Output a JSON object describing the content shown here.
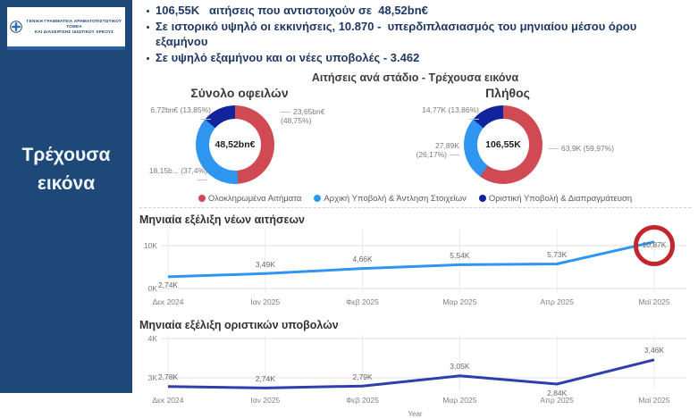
{
  "sidebar": {
    "logo": {
      "line1": "ΓΕΝΙΚΗ ΓΡΑΜΜΑΤΕΙΑ ΧΡΗΜΑΤΟΠΙΣΤΩΤΙΚΟΥ ΤΟΜΕΑ",
      "line2": "ΚΑΙ ΔΙΑΧΕΙΡΙΣΗΣ ΙΔΙΩΤΙΚΟΥ ΧΡΕΟΥΣ"
    },
    "page_label": "Τρέχουσα εικόνα"
  },
  "highlights": {
    "items": [
      "106,55K   αιτήσεις που αντιστοιχούν σε  48,52bn€",
      "Σε ιστορικό υψηλό οι εκκινήσεις, 10.870 -  υπερδιπλασιασμός του μηνιαίου μέσου όρου εξαμήνου",
      "Σε υψηλό εξαμήνου και οι νέες υποβολές - 3.462"
    ]
  },
  "section_title": "Αιτήσεις ανά στάδιο - Τρέχουσα εικόνα",
  "legend": {
    "items": [
      {
        "label": "Ολοκληρωμένα Αιτήματα",
        "color": "#d04a54"
      },
      {
        "label": "Αρχική Υποβολή & Άντληση Στοιχείων",
        "color": "#2e96f0"
      },
      {
        "label": "Οριστική Υποβολή & Διαπραγμάτευση",
        "color": "#12239e"
      }
    ]
  },
  "chart_data": [
    {
      "type": "pie",
      "subtype": "donut",
      "title": "Σύνολο οφειλών",
      "center_label": "48,52bn€",
      "slices": [
        {
          "name": "Ολοκληρωμένα Αιτήματα",
          "value_label": "23,65bn€ (48,75%)",
          "pct": 48.75,
          "color": "#d04a54"
        },
        {
          "name": "Αρχική Υποβολή & Άντληση Στοιχείων",
          "value_label": "18,15b... (37,4%)",
          "pct": 37.4,
          "color": "#2e96f0"
        },
        {
          "name": "Οριστική Υποβολή & Διαπραγμάτευση",
          "value_label": "6,72bn€ (13,85%)",
          "pct": 13.85,
          "color": "#12239e"
        }
      ]
    },
    {
      "type": "pie",
      "subtype": "donut",
      "title": "Πλήθος",
      "center_label": "106,55K",
      "slices": [
        {
          "name": "Ολοκληρωμένα Αιτήματα",
          "value_label": "63,9K (59,97%)",
          "pct": 59.97,
          "color": "#d04a54"
        },
        {
          "name": "Αρχική Υποβολή & Άντληση Στοιχείων",
          "value_label": "27,89K (26,17%)",
          "pct": 26.17,
          "color": "#2e96f0"
        },
        {
          "name": "Οριστική Υποβολή & Διαπραγμάτευση",
          "value_label": "14,77K (13,86%)",
          "pct": 13.86,
          "color": "#12239e"
        }
      ]
    },
    {
      "type": "line",
      "title": "Μηνιαία εξέλιξη νέων αιτήσεων",
      "x": [
        "Δεκ 2024",
        "Ιαν 2025",
        "Φεβ 2025",
        "Μαρ 2025",
        "Απρ 2025",
        "Μαϊ 2025"
      ],
      "values": [
        2740,
        3490,
        4660,
        5540,
        5730,
        10870
      ],
      "point_labels": [
        "2,74K",
        "3,49K",
        "4,66K",
        "5,54K",
        "5,73K",
        "10,87K"
      ],
      "label_positions": [
        "below",
        "above",
        "above",
        "above",
        "above",
        "center"
      ],
      "yticks": [
        {
          "value": 0,
          "label": "0K"
        },
        {
          "value": 10000,
          "label": "10K"
        }
      ],
      "ylim": [
        -830,
        13750
      ],
      "color": "#2e96f0",
      "annotation": {
        "type": "circle",
        "point_index": 5,
        "color": "#c2262e"
      }
    },
    {
      "type": "line",
      "title": "Μηνιαία εξέλιξη οριστικών υποβολών",
      "x": [
        "Δεκ 2024",
        "Ιαν 2025",
        "Φεβ 2025",
        "Μαρ 2025",
        "Απρ 2025",
        "Μαϊ 2025"
      ],
      "values": [
        2780,
        2740,
        2790,
        3050,
        2840,
        3460
      ],
      "point_labels": [
        "2,78K",
        "2,74K",
        "2,79K",
        "3,05K",
        "2,84K",
        "3,46K"
      ],
      "label_positions": [
        "above",
        "above",
        "above",
        "above",
        "below",
        "above"
      ],
      "yticks": [
        {
          "value": 3000,
          "label": "3K"
        },
        {
          "value": 4000,
          "label": "4K"
        }
      ],
      "ylim": [
        2682,
        4091
      ],
      "xlabel": "Year",
      "color": "#2f3ead"
    }
  ]
}
